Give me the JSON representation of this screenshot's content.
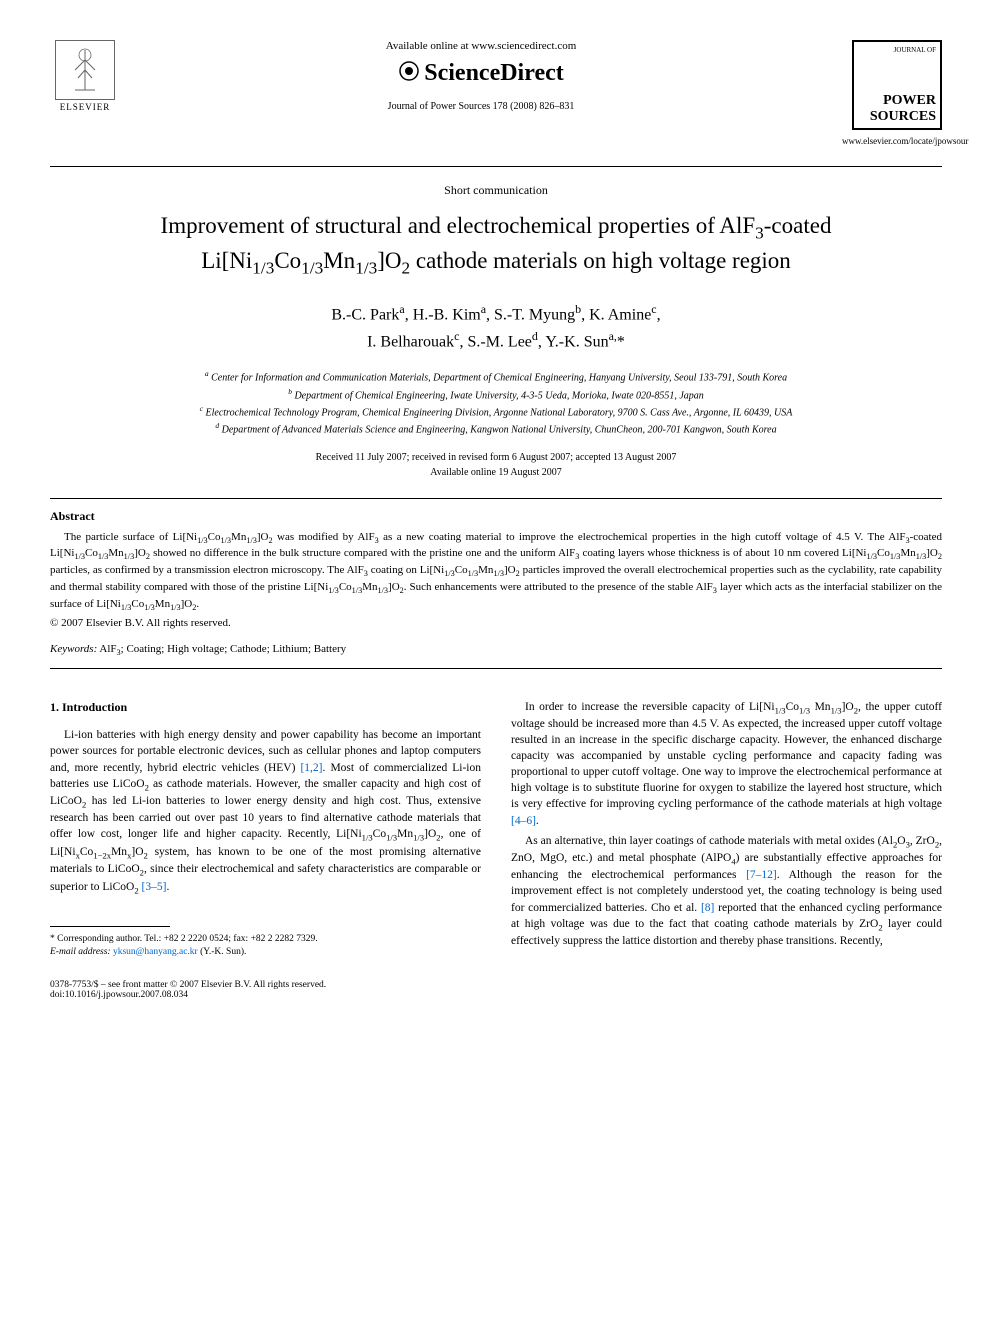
{
  "header": {
    "elsevier_label": "ELSEVIER",
    "available_text": "Available online at www.sciencedirect.com",
    "sciencedirect": "ScienceDirect",
    "journal_ref": "Journal of Power Sources 178 (2008) 826–831",
    "journal_top": "JOURNAL OF",
    "journal_name": "POWER SOURCES",
    "journal_url": "www.elsevier.com/locate/jpowsour"
  },
  "article": {
    "type_label": "Short communication",
    "title_html": "Improvement of structural and electrochemical properties of AlF<sub>3</sub>-coated Li[Ni<sub>1/3</sub>Co<sub>1/3</sub>Mn<sub>1/3</sub>]O<sub>2</sub> cathode materials on high voltage region",
    "authors_html": "B.-C. Park<sup>a</sup>, H.-B. Kim<sup>a</sup>, S.-T. Myung<sup>b</sup>, K. Amine<sup>c</sup>,<br>I. Belharouak<sup>c</sup>, S.-M. Lee<sup>d</sup>, Y.-K. Sun<sup>a,</sup>*",
    "affiliations": [
      "<sup>a</sup> Center for Information and Communication Materials, Department of Chemical Engineering, Hanyang University, Seoul 133-791, South Korea",
      "<sup>b</sup> Department of Chemical Engineering, Iwate University, 4-3-5 Ueda, Morioka, Iwate 020-8551, Japan",
      "<sup>c</sup> Electrochemical Technology Program, Chemical Engineering Division, Argonne National Laboratory, 9700 S. Cass Ave., Argonne, IL 60439, USA",
      "<sup>d</sup> Department of Advanced Materials Science and Engineering, Kangwon National University, ChunCheon, 200-701 Kangwon, South Korea"
    ],
    "dates": [
      "Received 11 July 2007; received in revised form 6 August 2007; accepted 13 August 2007",
      "Available online 19 August 2007"
    ]
  },
  "abstract": {
    "heading": "Abstract",
    "text_html": "The particle surface of Li[Ni<sub>1/3</sub>Co<sub>1/3</sub>Mn<sub>1/3</sub>]O<sub>2</sub> was modified by AlF<sub>3</sub> as a new coating material to improve the electrochemical properties in the high cutoff voltage of 4.5 V. The AlF<sub>3</sub>-coated Li[Ni<sub>1/3</sub>Co<sub>1/3</sub>Mn<sub>1/3</sub>]O<sub>2</sub> showed no difference in the bulk structure compared with the pristine one and the uniform AlF<sub>3</sub> coating layers whose thickness is of about 10 nm covered Li[Ni<sub>1/3</sub>Co<sub>1/3</sub>Mn<sub>1/3</sub>]O<sub>2</sub> particles, as confirmed by a transmission electron microscopy. The AlF<sub>3</sub> coating on Li[Ni<sub>1/3</sub>Co<sub>1/3</sub>Mn<sub>1/3</sub>]O<sub>2</sub> particles improved the overall electrochemical properties such as the cyclability, rate capability and thermal stability compared with those of the pristine Li[Ni<sub>1/3</sub>Co<sub>1/3</sub>Mn<sub>1/3</sub>]O<sub>2</sub>. Such enhancements were attributed to the presence of the stable AlF<sub>3</sub> layer which acts as the interfacial stabilizer on the surface of Li[Ni<sub>1/3</sub>Co<sub>1/3</sub>Mn<sub>1/3</sub>]O<sub>2</sub>.",
    "copyright": "© 2007 Elsevier B.V. All rights reserved.",
    "keywords_label": "Keywords:",
    "keywords_text": " AlF<sub>3</sub>; Coating; High voltage; Cathode; Lithium; Battery"
  },
  "body": {
    "section1_heading": "1. Introduction",
    "col1_p1_html": "Li-ion batteries with high energy density and power capability has become an important power sources for portable electronic devices, such as cellular phones and laptop computers and, more recently, hybrid electric vehicles (HEV) <span class=\"ref-link\">[1,2]</span>. Most of commercialized Li-ion batteries use LiCoO<sub>2</sub> as cathode materials. However, the smaller capacity and high cost of LiCoO<sub>2</sub> has led Li-ion batteries to lower energy density and high cost. Thus, extensive research has been carried out over past 10 years to find alternative cathode materials that offer low cost, longer life and higher capacity. Recently, Li[Ni<sub>1/3</sub>Co<sub>1/3</sub>Mn<sub>1/3</sub>]O<sub>2</sub>, one of Li[Ni<sub>x</sub>Co<sub>1−2x</sub>Mn<sub>x</sub>]O<sub>2</sub> system, has known to be one of the most promising alternative materials to LiCoO<sub>2</sub>, since their electrochemical and safety characteristics are comparable or superior to LiCoO<sub>2</sub> <span class=\"ref-link\">[3–5]</span>.",
    "col2_p1_html": "In order to increase the reversible capacity of Li[Ni<sub>1/3</sub>Co<sub>1/3</sub> Mn<sub>1/3</sub>]O<sub>2</sub>, the upper cutoff voltage should be increased more than 4.5 V. As expected, the increased upper cutoff voltage resulted in an increase in the specific discharge capacity. However, the enhanced discharge capacity was accompanied by unstable cycling performance and capacity fading was proportional to upper cutoff voltage. One way to improve the electrochemical performance at high voltage is to substitute fluorine for oxygen to stabilize the layered host structure, which is very effective for improving cycling performance of the cathode materials at high voltage <span class=\"ref-link\">[4–6]</span>.",
    "col2_p2_html": "As an alternative, thin layer coatings of cathode materials with metal oxides (Al<sub>2</sub>O<sub>3</sub>, ZrO<sub>2</sub>, ZnO, MgO, etc.) and metal phosphate (AlPO<sub>4</sub>) are substantially effective approaches for enhancing the electrochemical performances <span class=\"ref-link\">[7–12]</span>. Although the reason for the improvement effect is not completely understood yet, the coating technology is being used for commercialized batteries. Cho et al. <span class=\"ref-link\">[8]</span> reported that the enhanced cycling performance at high voltage was due to the fact that coating cathode materials by ZrO<sub>2</sub> layer could effectively suppress the lattice distortion and thereby phase transitions. Recently,"
  },
  "footnote": {
    "corresponding_html": "* Corresponding author. Tel.: +82 2 2220 0524; fax: +82 2 2282 7329.",
    "email_label": "E-mail address:",
    "email": "yksun@hanyang.ac.kr",
    "email_suffix": " (Y.-K. Sun)."
  },
  "footer": {
    "line1": "0378-7753/$ – see front matter © 2007 Elsevier B.V. All rights reserved.",
    "line2": "doi:10.1016/j.jpowsour.2007.08.034"
  },
  "colors": {
    "text": "#000000",
    "link": "#0066cc",
    "background": "#ffffff"
  },
  "typography": {
    "title_fontsize": 23,
    "body_fontsize": 11.5,
    "abstract_fontsize": 11,
    "affil_fontsize": 10,
    "footnote_fontsize": 9.5
  }
}
